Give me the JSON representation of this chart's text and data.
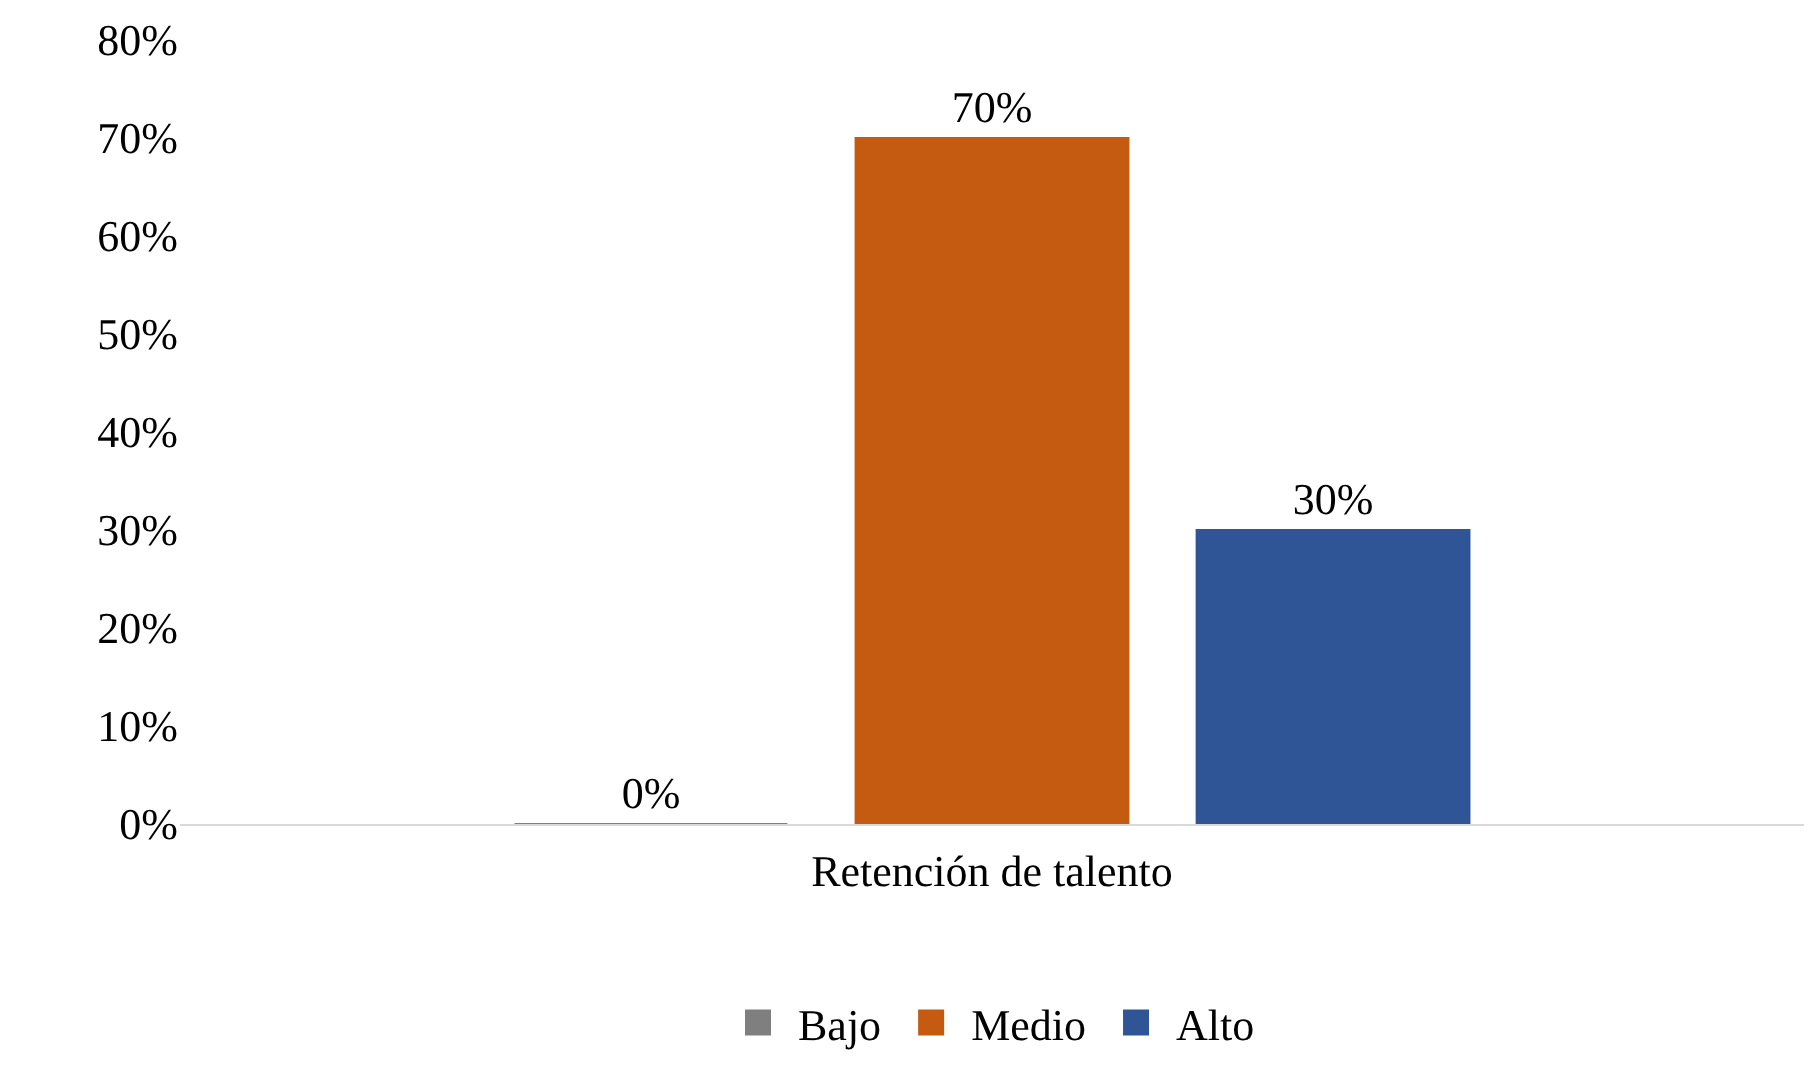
{
  "chart_data": {
    "type": "bar",
    "xlabel": "Retención de talento",
    "categories": [
      null
    ],
    "series": [
      {
        "name": "Bajo",
        "color": "#7f7f7f",
        "values": [
          0
        ],
        "value_labels": [
          "0%"
        ]
      },
      {
        "name": "Medio",
        "color": "#c55a11",
        "values": [
          70
        ],
        "value_labels": [
          "70%"
        ]
      },
      {
        "name": "Alto",
        "color": "#2f5597",
        "values": [
          30
        ],
        "value_labels": [
          "30%"
        ]
      }
    ],
    "ylim": [
      0,
      80
    ],
    "yticks": [
      {
        "value": 0,
        "label": "0%"
      },
      {
        "value": 10,
        "label": "10%"
      },
      {
        "value": 20,
        "label": "20%"
      },
      {
        "value": 30,
        "label": "30%"
      },
      {
        "value": 40,
        "label": "40%"
      },
      {
        "value": 50,
        "label": "50%"
      },
      {
        "value": 60,
        "label": "60%"
      },
      {
        "value": 70,
        "label": "70%"
      },
      {
        "value": 80,
        "label": "80%"
      }
    ],
    "legend": "bottom"
  }
}
